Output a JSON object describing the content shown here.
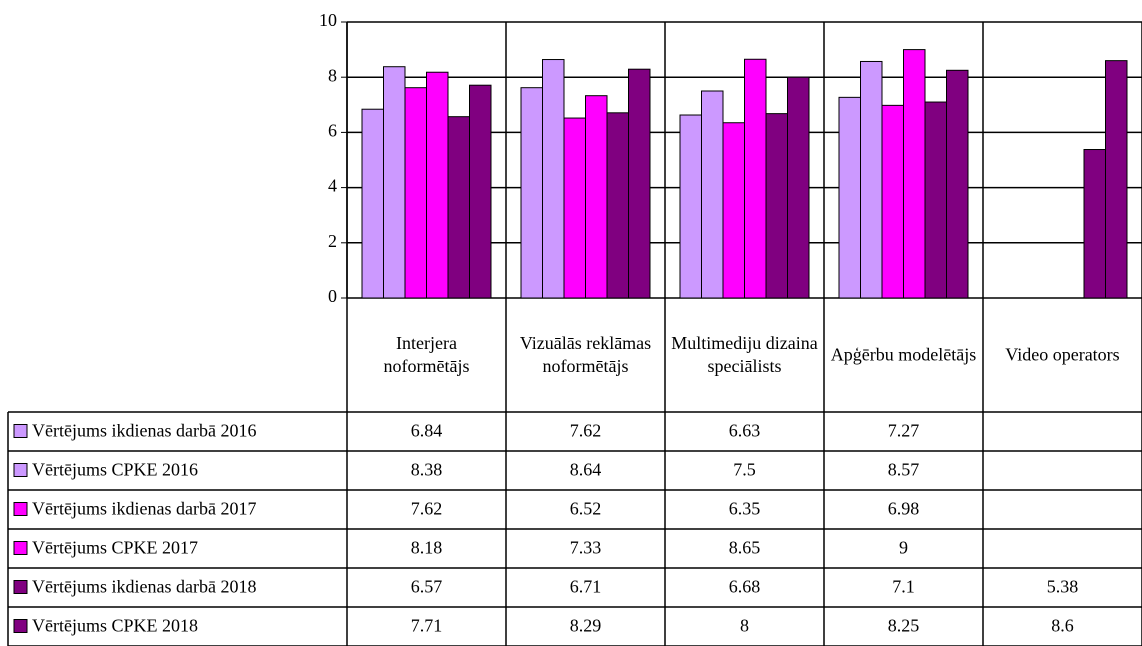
{
  "chart_data": {
    "type": "bar",
    "categories": [
      "Interjera noformētājs",
      "Vizuālās reklāmas noformētājs",
      "Multimediju dizaina speciālists",
      "Apģērbu modelētājs",
      "Video operators"
    ],
    "series": [
      {
        "name": "Vērtējums ikdienas darbā 2016",
        "color": "#cc99ff",
        "values": [
          6.84,
          7.62,
          6.63,
          7.27,
          null
        ]
      },
      {
        "name": "Vērtējums CPKE 2016",
        "color": "#cc99ff",
        "values": [
          8.38,
          8.64,
          7.5,
          8.57,
          null
        ]
      },
      {
        "name": "Vērtējums ikdienas darbā 2017",
        "color": "#ff00ff",
        "values": [
          7.62,
          6.52,
          6.35,
          6.98,
          null
        ]
      },
      {
        "name": "Vērtējums CPKE 2017",
        "color": "#ff00ff",
        "values": [
          8.18,
          7.33,
          8.65,
          9,
          null
        ]
      },
      {
        "name": "Vērtējums ikdienas darbā 2018",
        "color": "#800080",
        "values": [
          6.57,
          6.71,
          6.68,
          7.1,
          5.38
        ]
      },
      {
        "name": "Vērtējums CPKE 2018",
        "color": "#800080",
        "values": [
          7.71,
          8.29,
          8,
          8.25,
          8.6
        ]
      }
    ],
    "ylim": [
      0,
      10
    ],
    "yticks": [
      0,
      2,
      4,
      6,
      8,
      10
    ],
    "grid": true,
    "data_table": true
  }
}
